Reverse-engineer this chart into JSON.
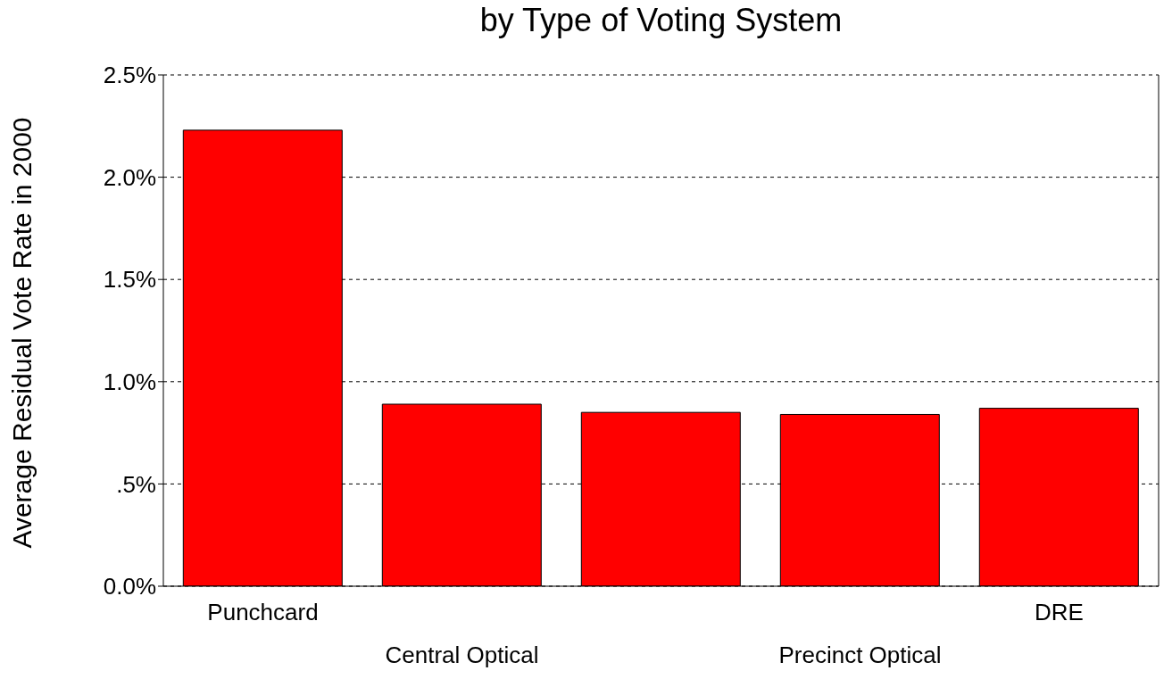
{
  "chart_data": {
    "type": "bar",
    "title": "by Type of Voting System",
    "ylabel": "Average Residual Vote Rate in 2000",
    "categories": [
      "Punchcard",
      "Central Optical",
      null,
      "Precinct Optical",
      "DRE"
    ],
    "values": [
      2.23,
      0.89,
      0.85,
      0.84,
      0.87
    ],
    "color": "#ff0000",
    "ylim": [
      0,
      2.5
    ],
    "yticks": [
      {
        "value": 0,
        "label": "0.0%"
      },
      {
        "value": 0.5,
        "label": ".5%"
      },
      {
        "value": 1,
        "label": "1.0%"
      },
      {
        "value": 1.5,
        "label": "1.5%"
      },
      {
        "value": 2,
        "label": "2.0%"
      },
      {
        "value": 2.5,
        "label": "2.5%"
      }
    ],
    "grid": "y"
  }
}
